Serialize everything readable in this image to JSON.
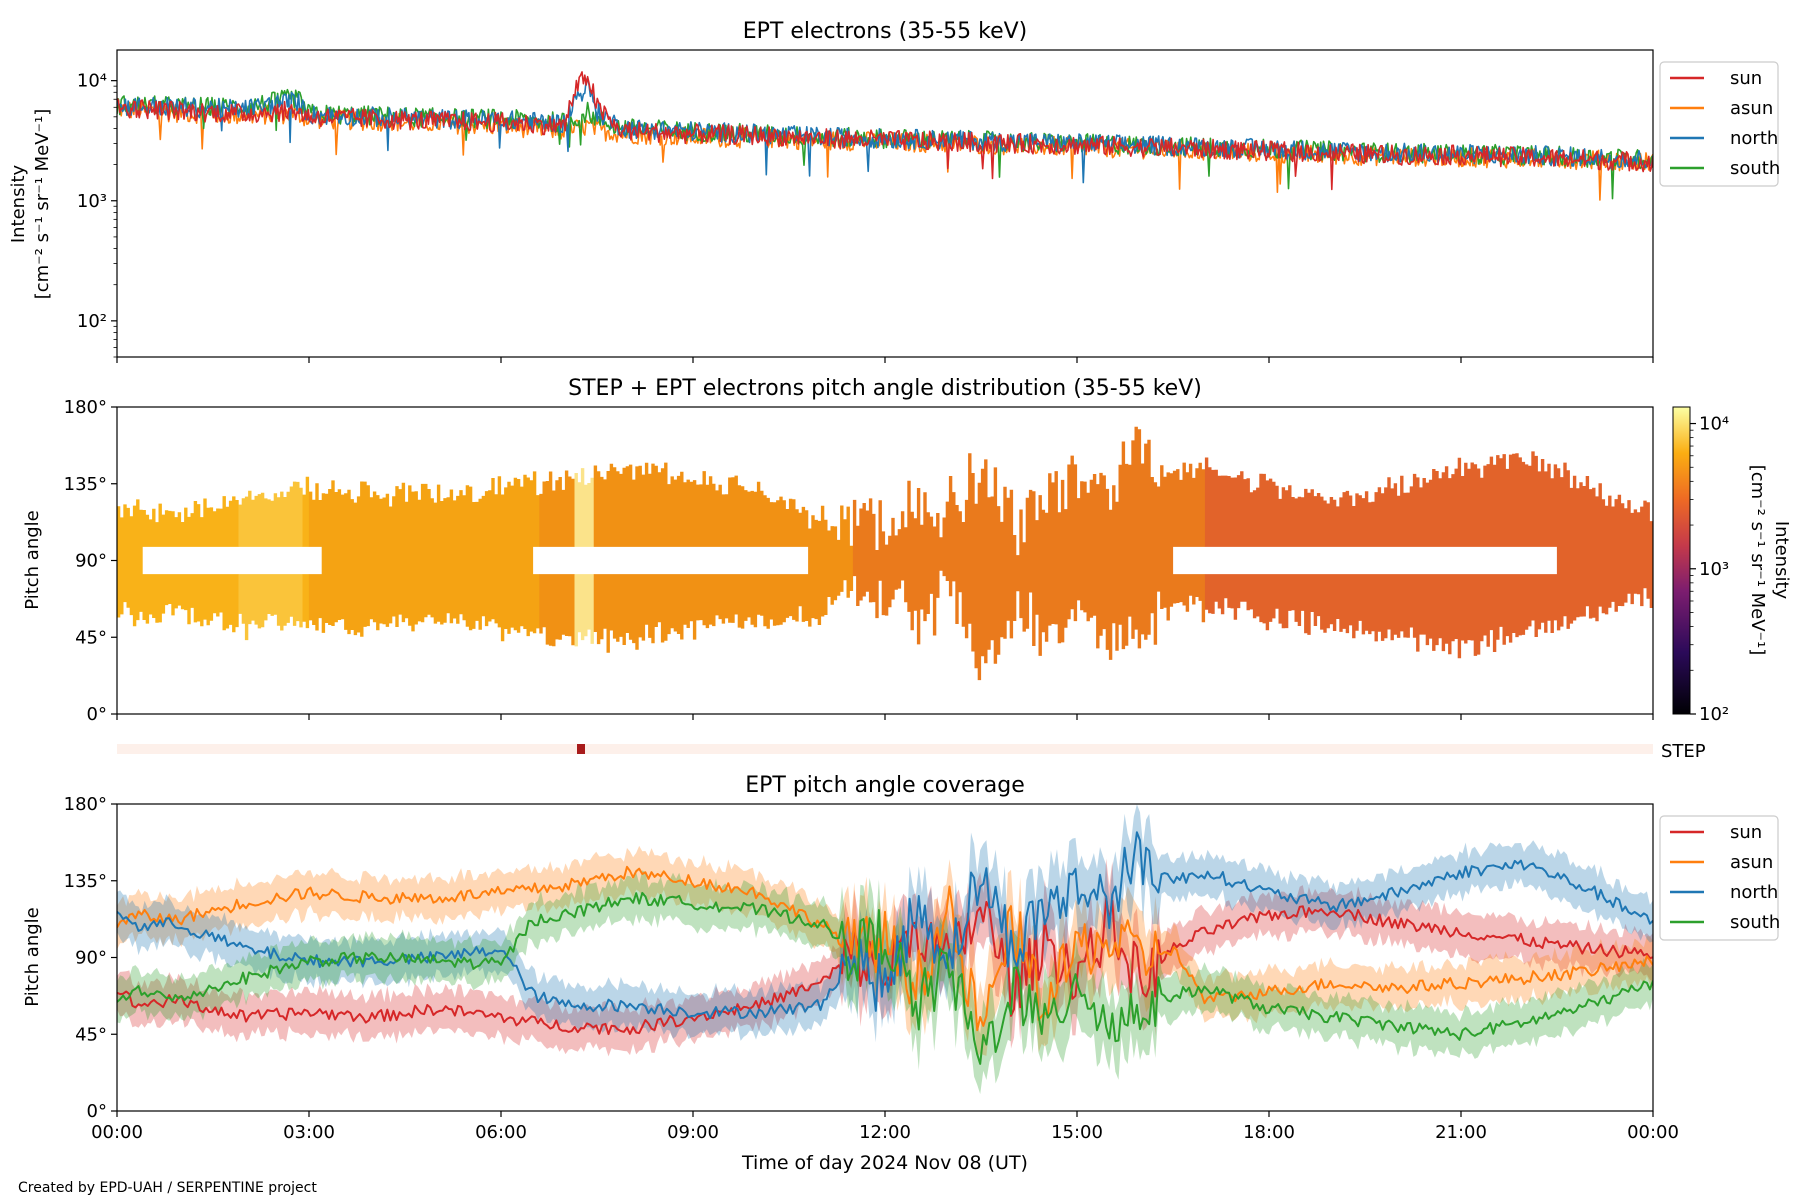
{
  "footer": "Created by EPD-UAH / SERPENTINE project",
  "xlabel": "Time of day 2024 Nov 08 (UT)",
  "time_ticks": [
    "00:00",
    "03:00",
    "06:00",
    "09:00",
    "12:00",
    "15:00",
    "18:00",
    "21:00",
    "00:00"
  ],
  "series_colors": {
    "sun": "#d62728",
    "asun": "#ff7f0e",
    "north": "#1f77b4",
    "south": "#2ca02c"
  },
  "chart_data": [
    {
      "type": "line",
      "title": "EPT electrons (35-55 keV)",
      "ylabel": "Intensity",
      "yunit": "[cm⁻² s⁻¹ sr⁻¹ MeV⁻¹]",
      "yscale": "log",
      "ylim": [
        50,
        18000
      ],
      "y_ticks": [
        "10²",
        "10³",
        "10⁴"
      ],
      "xlim_hours": [
        0,
        24
      ],
      "legend": "outside-right",
      "x_hours": [
        0,
        1,
        2,
        2.8,
        3,
        4,
        5,
        6,
        7,
        7.2,
        7.35,
        7.5,
        7.8,
        8,
        9,
        10,
        11,
        12,
        13,
        14,
        15,
        16,
        17,
        18,
        19,
        20,
        21,
        22,
        23,
        24
      ],
      "series": [
        {
          "name": "sun",
          "values": [
            6000,
            5600,
            5300,
            5600,
            5000,
            4800,
            4600,
            4500,
            4200,
            9000,
            11000,
            6000,
            4000,
            3800,
            3600,
            3500,
            3300,
            3200,
            3100,
            3000,
            2900,
            2800,
            2700,
            2600,
            2500,
            2400,
            2400,
            2300,
            2200,
            2100
          ]
        },
        {
          "name": "asun",
          "values": [
            5800,
            5400,
            5100,
            5300,
            4800,
            4600,
            4400,
            4200,
            3800,
            4000,
            4200,
            3900,
            3700,
            3600,
            3400,
            3300,
            3200,
            3100,
            3000,
            2900,
            2800,
            2700,
            2600,
            2500,
            2400,
            2350,
            2300,
            2250,
            2200,
            2100
          ]
        },
        {
          "name": "north",
          "values": [
            6200,
            6000,
            5800,
            6800,
            5200,
            5000,
            4800,
            4700,
            4400,
            7500,
            9000,
            5500,
            4300,
            4000,
            3800,
            3600,
            3400,
            3300,
            3200,
            3100,
            3000,
            2900,
            2800,
            2700,
            2600,
            2500,
            2450,
            2400,
            2300,
            2200
          ]
        },
        {
          "name": "south",
          "values": [
            6300,
            6100,
            6000,
            7200,
            5300,
            5100,
            4900,
            4800,
            4500,
            5000,
            5500,
            4800,
            4200,
            4000,
            3800,
            3600,
            3400,
            3300,
            3200,
            3100,
            3000,
            2900,
            2800,
            2700,
            2600,
            2500,
            2450,
            2400,
            2300,
            2200
          ]
        }
      ]
    },
    {
      "type": "heatmap",
      "title": "STEP + EPT electrons pitch angle distribution (35-55 keV)",
      "ylabel": "Pitch angle",
      "y_ticks": [
        "0°",
        "45°",
        "90°",
        "135°",
        "180°"
      ],
      "ylim_deg": [
        0,
        180
      ],
      "colorbar_label": "Intensity",
      "colorbar_unit": "[cm⁻² s⁻¹ sr⁻¹ MeV⁻¹]",
      "colorbar_ticks": [
        "10²",
        "10³",
        "10⁴"
      ],
      "colorbar_range": [
        100,
        13000
      ],
      "colormap": "inferno",
      "step_label": "STEP",
      "step_marker_hour": 7.25
    },
    {
      "type": "line",
      "title": "EPT pitch angle coverage",
      "ylabel": "Pitch angle",
      "y_ticks": [
        "0°",
        "45°",
        "90°",
        "135°",
        "180°"
      ],
      "ylim_deg": [
        0,
        180
      ],
      "legend": "outside-right",
      "x_hours": [
        0,
        0.3,
        0.9,
        2,
        3,
        4,
        5,
        6,
        6.5,
        7,
        8,
        9,
        10,
        11,
        11.5,
        12,
        12.5,
        13,
        13.5,
        14,
        14.5,
        15,
        15.5,
        16,
        16.5,
        17,
        18,
        19,
        20,
        21,
        22,
        23,
        24
      ],
      "series": [
        {
          "name": "sun",
          "values": [
            72,
            62,
            65,
            55,
            58,
            55,
            60,
            55,
            52,
            50,
            48,
            55,
            62,
            75,
            92,
            80,
            110,
            85,
            120,
            70,
            100,
            80,
            110,
            75,
            95,
            105,
            115,
            118,
            110,
            105,
            100,
            95,
            92
          ]
        },
        {
          "name": "asun",
          "values": [
            108,
            115,
            112,
            122,
            128,
            125,
            125,
            128,
            130,
            132,
            140,
            135,
            128,
            110,
            95,
            100,
            75,
            115,
            45,
            110,
            60,
            95,
            100,
            90,
            95,
            65,
            70,
            75,
            72,
            75,
            78,
            82,
            88
          ]
        },
        {
          "name": "north",
          "values": [
            118,
            108,
            110,
            95,
            88,
            88,
            90,
            95,
            68,
            62,
            62,
            58,
            58,
            62,
            92,
            70,
            120,
            90,
            140,
            95,
            120,
            130,
            125,
            150,
            135,
            140,
            128,
            120,
            128,
            140,
            145,
            130,
            110
          ]
        },
        {
          "name": "south",
          "values": [
            62,
            72,
            65,
            78,
            88,
            90,
            88,
            86,
            112,
            115,
            125,
            122,
            118,
            110,
            92,
            105,
            60,
            85,
            30,
            75,
            45,
            80,
            50,
            60,
            68,
            72,
            60,
            55,
            50,
            45,
            52,
            62,
            75
          ]
        }
      ]
    }
  ]
}
